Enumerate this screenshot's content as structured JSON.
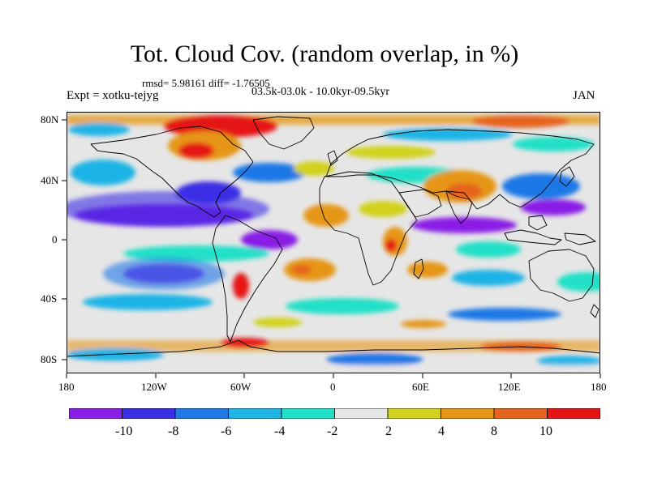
{
  "title": "Tot. Cloud Cov. (random overlap, in %)",
  "stats": "rmsd= 5.98161 diff= -1.76505",
  "experiment": "Expt = xotku-tejyg",
  "period": "03.5k-03.0k - 10.0kyr-09.5kyr",
  "month": "JAN",
  "lat_labels": [
    "80N",
    "40N",
    "0",
    "40S",
    "80S"
  ],
  "lon_labels": [
    "180",
    "120W",
    "60W",
    "0",
    "60E",
    "120E",
    "180"
  ],
  "colorbar": {
    "labels": [
      "-10",
      "-8",
      "-6",
      "-4",
      "-2",
      "2",
      "4",
      "8",
      "10"
    ],
    "colors": [
      "#8a1ee6",
      "#3a2ee6",
      "#1e78e6",
      "#1eb4e6",
      "#20e0c8",
      "#e6e6e6",
      "#d2d21e",
      "#e69614",
      "#e6641e",
      "#e61414"
    ]
  },
  "palette": {
    "strong_negative": "#8a1ee6",
    "negative": "#3a2ee6",
    "moderate_negative": "#1e78e6",
    "weak_negative": "#1eb4e6",
    "slight_negative": "#20e0c8",
    "neutral": "#e6e6e6",
    "slight_positive": "#d2d21e",
    "positive": "#e69614",
    "strong_positive": "#e61414"
  }
}
